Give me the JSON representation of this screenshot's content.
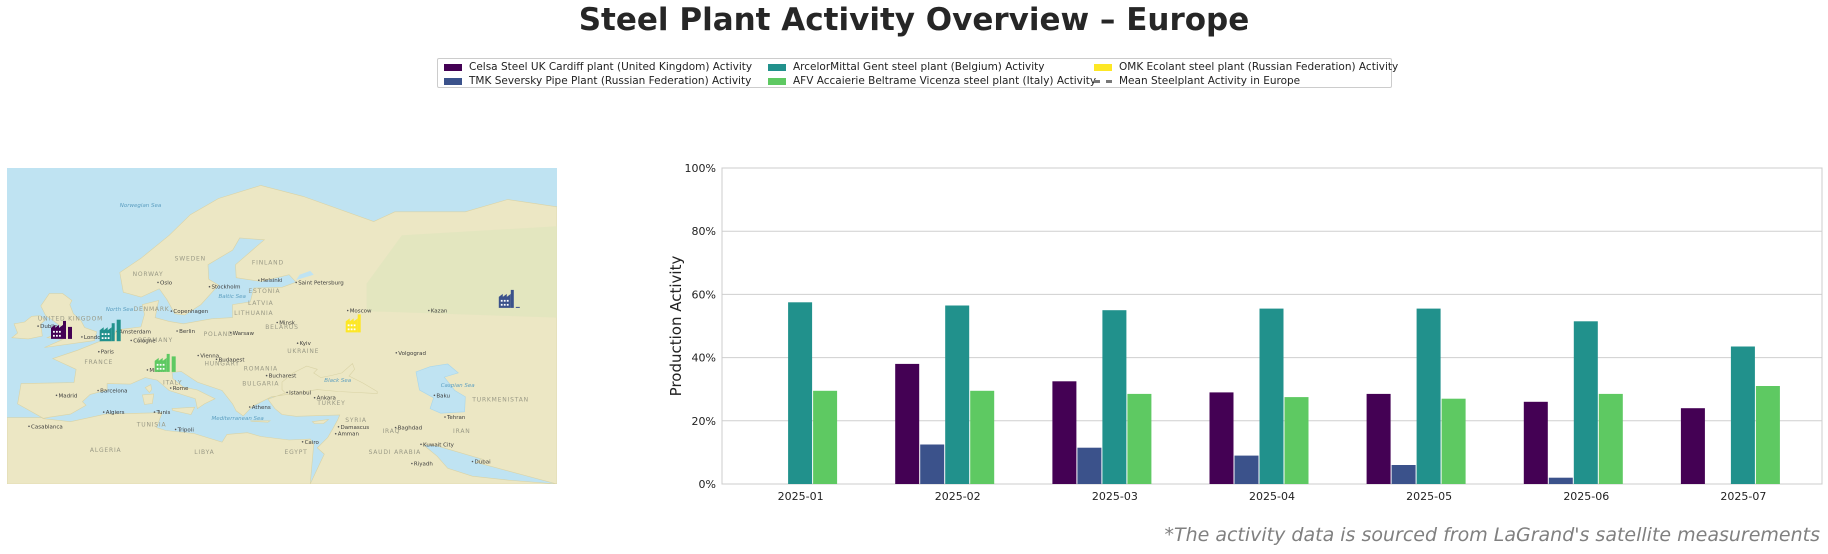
{
  "title": "Steel Plant Activity Overview – Europe",
  "legend": [
    {
      "label": "Celsa Steel UK Cardiff plant (United Kingdom) Activity",
      "color": "#440154",
      "kind": "bar"
    },
    {
      "label": "TMK Seversky Pipe Plant (Russian Federation) Activity",
      "color": "#3b528b",
      "kind": "bar"
    },
    {
      "label": "ArcelorMittal Gent steel plant (Belgium) Activity",
      "color": "#21918c",
      "kind": "bar"
    },
    {
      "label": "AFV Accaierie Beltrame Vicenza steel plant (Italy) Activity",
      "color": "#5ec962",
      "kind": "bar"
    },
    {
      "label": "OMK Ecolant steel plant (Russian Federation) Activity",
      "color": "#fde725",
      "kind": "bar"
    },
    {
      "label": "Mean Steelplant Activity in Europe",
      "color": "#777777",
      "kind": "dash"
    }
  ],
  "map": {
    "labels": [
      {
        "text": "Norwegian Sea",
        "lon": 5,
        "lat": 69,
        "kind": "sea"
      },
      {
        "text": "SWEDEN",
        "lon": 15,
        "lat": 63,
        "kind": "country"
      },
      {
        "text": "FINLAND",
        "lon": 26,
        "lat": 62.5,
        "kind": "country"
      },
      {
        "text": "NORWAY",
        "lon": 9,
        "lat": 61,
        "kind": "country"
      },
      {
        "text": "Oslo",
        "lon": 10.7,
        "lat": 59.9,
        "kind": "city"
      },
      {
        "text": "Stockholm",
        "lon": 18,
        "lat": 59.3,
        "kind": "city"
      },
      {
        "text": "Helsinki",
        "lon": 25,
        "lat": 60.2,
        "kind": "city"
      },
      {
        "text": "Saint Petersburg",
        "lon": 30.3,
        "lat": 59.9,
        "kind": "city"
      },
      {
        "text": "ESTONIA",
        "lon": 25.5,
        "lat": 58.7,
        "kind": "country"
      },
      {
        "text": "Baltic Sea",
        "lon": 19,
        "lat": 58,
        "kind": "sea"
      },
      {
        "text": "LATVIA",
        "lon": 25,
        "lat": 56.9,
        "kind": "country"
      },
      {
        "text": "LITHUANIA",
        "lon": 24,
        "lat": 55.4,
        "kind": "country"
      },
      {
        "text": "North Sea",
        "lon": 3,
        "lat": 56,
        "kind": "sea"
      },
      {
        "text": "DENMARK",
        "lon": 9.5,
        "lat": 56,
        "kind": "country"
      },
      {
        "text": "Copenhagen",
        "lon": 12.6,
        "lat": 55.7,
        "kind": "city"
      },
      {
        "text": "Moscow",
        "lon": 37.6,
        "lat": 55.8,
        "kind": "city"
      },
      {
        "text": "UNITED KINGDOM",
        "lon": -2,
        "lat": 54.5,
        "kind": "country"
      },
      {
        "text": "Dublin",
        "lon": -6.3,
        "lat": 53.3,
        "kind": "city"
      },
      {
        "text": "Minsk",
        "lon": 27.6,
        "lat": 53.9,
        "kind": "city"
      },
      {
        "text": "BELARUS",
        "lon": 28,
        "lat": 53.2,
        "kind": "country"
      },
      {
        "text": "Amsterdam",
        "lon": 4.9,
        "lat": 52.4,
        "kind": "city"
      },
      {
        "text": "Berlin",
        "lon": 13.4,
        "lat": 52.5,
        "kind": "city"
      },
      {
        "text": "POLAND",
        "lon": 19,
        "lat": 52,
        "kind": "country"
      },
      {
        "text": "Warsaw",
        "lon": 21,
        "lat": 52.2,
        "kind": "city"
      },
      {
        "text": "London",
        "lon": -0.1,
        "lat": 51.5,
        "kind": "city"
      },
      {
        "text": "GERMANY",
        "lon": 10,
        "lat": 51,
        "kind": "country"
      },
      {
        "text": "Cologne",
        "lon": 6.9,
        "lat": 50.9,
        "kind": "city"
      },
      {
        "text": "Kyiv",
        "lon": 30.5,
        "lat": 50.4,
        "kind": "city"
      },
      {
        "text": "Paris",
        "lon": 2.3,
        "lat": 48.9,
        "kind": "city"
      },
      {
        "text": "UKRAINE",
        "lon": 31,
        "lat": 49,
        "kind": "country"
      },
      {
        "text": "Vienna",
        "lon": 16.4,
        "lat": 48.2,
        "kind": "city"
      },
      {
        "text": "Volgograd",
        "lon": 44.5,
        "lat": 48.7,
        "kind": "city"
      },
      {
        "text": "FRANCE",
        "lon": 2,
        "lat": 47,
        "kind": "country"
      },
      {
        "text": "Budapest",
        "lon": 19,
        "lat": 47.5,
        "kind": "city"
      },
      {
        "text": "HUNGARY",
        "lon": 19.5,
        "lat": 46.7,
        "kind": "country"
      },
      {
        "text": "ROMANIA",
        "lon": 25,
        "lat": 45.8,
        "kind": "country"
      },
      {
        "text": "Milan",
        "lon": 9.2,
        "lat": 45.5,
        "kind": "city"
      },
      {
        "text": "Bucharest",
        "lon": 26.1,
        "lat": 44.4,
        "kind": "city"
      },
      {
        "text": "Black Sea",
        "lon": 34,
        "lat": 43.5,
        "kind": "sea"
      },
      {
        "text": "Caspian Sea",
        "lon": 50.5,
        "lat": 42.5,
        "kind": "sea"
      },
      {
        "text": "ITALY",
        "lon": 12.5,
        "lat": 43,
        "kind": "country"
      },
      {
        "text": "BULGARIA",
        "lon": 25,
        "lat": 42.8,
        "kind": "country"
      },
      {
        "text": "Barcelona",
        "lon": 2.2,
        "lat": 41.4,
        "kind": "city"
      },
      {
        "text": "Rome",
        "lon": 12.5,
        "lat": 41.9,
        "kind": "city"
      },
      {
        "text": "Istanbul",
        "lon": 29,
        "lat": 41,
        "kind": "city"
      },
      {
        "text": "Baku",
        "lon": 49.9,
        "lat": 40.4,
        "kind": "city"
      },
      {
        "text": "Madrid",
        "lon": -3.7,
        "lat": 40.4,
        "kind": "city"
      },
      {
        "text": "Ankara",
        "lon": 32.9,
        "lat": 39.9,
        "kind": "city"
      },
      {
        "text": "TURKMENISTAN",
        "lon": 59,
        "lat": 39.5,
        "kind": "country"
      },
      {
        "text": "Algiers",
        "lon": 3,
        "lat": 36.8,
        "kind": "city"
      },
      {
        "text": "Mediterranean Sea",
        "lon": 18,
        "lat": 35.5,
        "kind": "sea"
      },
      {
        "text": "Tunis",
        "lon": 10.2,
        "lat": 36.8,
        "kind": "city"
      },
      {
        "text": "Athens",
        "lon": 23.7,
        "lat": 37.9,
        "kind": "city"
      },
      {
        "text": "TURKEY",
        "lon": 35,
        "lat": 38.8,
        "kind": "country"
      },
      {
        "text": "Tehran",
        "lon": 51.4,
        "lat": 35.7,
        "kind": "city"
      },
      {
        "text": "Casablanca",
        "lon": -7.6,
        "lat": 33.6,
        "kind": "city"
      },
      {
        "text": "TUNISIA",
        "lon": 9.5,
        "lat": 34,
        "kind": "country"
      },
      {
        "text": "SYRIA",
        "lon": 38.5,
        "lat": 35,
        "kind": "country"
      },
      {
        "text": "Tripoli",
        "lon": 13.2,
        "lat": 32.9,
        "kind": "city"
      },
      {
        "text": "Damascus",
        "lon": 36.3,
        "lat": 33.5,
        "kind": "city"
      },
      {
        "text": "Baghdad",
        "lon": 44.4,
        "lat": 33.3,
        "kind": "city"
      },
      {
        "text": "Amman",
        "lon": 35.9,
        "lat": 31.9,
        "kind": "city"
      },
      {
        "text": "IRAQ",
        "lon": 43.5,
        "lat": 32.5,
        "kind": "country"
      },
      {
        "text": "IRAN",
        "lon": 53.5,
        "lat": 32.5,
        "kind": "country"
      },
      {
        "text": "Cairo",
        "lon": 31.2,
        "lat": 30,
        "kind": "city"
      },
      {
        "text": "Kuwait City",
        "lon": 48,
        "lat": 29.4,
        "kind": "city"
      },
      {
        "text": "ALGERIA",
        "lon": 3,
        "lat": 28,
        "kind": "country"
      },
      {
        "text": "LIBYA",
        "lon": 17,
        "lat": 27.5,
        "kind": "country"
      },
      {
        "text": "EGYPT",
        "lon": 30,
        "lat": 27.5,
        "kind": "country"
      },
      {
        "text": "SAUDI ARABIA",
        "lon": 44,
        "lat": 27.5,
        "kind": "country"
      },
      {
        "text": "Riyadh",
        "lon": 46.7,
        "lat": 24.7,
        "kind": "city"
      },
      {
        "text": "Dubai",
        "lon": 55.3,
        "lat": 25.2,
        "kind": "city"
      },
      {
        "text": "Kazan",
        "lon": 49.1,
        "lat": 55.8,
        "kind": "city"
      }
    ],
    "plants": [
      {
        "name": "Celsa Steel UK Cardiff plant",
        "lon": -3.2,
        "lat": 51.5,
        "color": "#440154",
        "activity": 0.24
      },
      {
        "name": "ArcelorMittal Gent steel plant",
        "lon": 3.7,
        "lat": 51.1,
        "color": "#21918c",
        "activity": 0.43
      },
      {
        "name": "AFV Accaierie Beltrame Vicenza steel plant",
        "lon": 11.5,
        "lat": 45.5,
        "color": "#5ec962",
        "activity": 0.31
      },
      {
        "name": "OMK Ecolant steel plant",
        "lon": 38.6,
        "lat": 52.6,
        "color": "#fde725",
        "activity": 0
      },
      {
        "name": "TMK Seversky Pipe Plant",
        "lon": 60.3,
        "lat": 56.5,
        "color": "#3b528b",
        "activity": 0.02
      }
    ]
  },
  "chart_data": {
    "type": "bar",
    "categories": [
      "2025-01",
      "2025-02",
      "2025-03",
      "2025-04",
      "2025-05",
      "2025-06",
      "2025-07"
    ],
    "series": [
      {
        "name": "Celsa Steel UK Cardiff plant (United Kingdom) Activity",
        "color": "#440154",
        "values": [
          null,
          38,
          32.5,
          29,
          28.5,
          26,
          24
        ]
      },
      {
        "name": "TMK Seversky Pipe Plant (Russian Federation) Activity",
        "color": "#3b528b",
        "values": [
          null,
          12.5,
          11.5,
          9,
          6,
          2,
          null
        ]
      },
      {
        "name": "ArcelorMittal Gent steel plant (Belgium) Activity",
        "color": "#21918c",
        "values": [
          57.5,
          56.5,
          55,
          55.5,
          55.5,
          51.5,
          43.5
        ]
      },
      {
        "name": "AFV Accaierie Beltrame Vicenza steel plant (Italy) Activity",
        "color": "#5ec962",
        "values": [
          29.5,
          29.5,
          28.5,
          27.5,
          27,
          28.5,
          31
        ]
      },
      {
        "name": "OMK Ecolant steel plant (Russian Federation) Activity",
        "color": "#fde725",
        "values": [
          null,
          null,
          null,
          null,
          null,
          null,
          null
        ]
      }
    ],
    "ylabel": "Production Activity",
    "ylim": [
      0,
      100
    ],
    "yticks": [
      0,
      20,
      40,
      60,
      80,
      100
    ],
    "ytick_labels": [
      "0%",
      "20%",
      "40%",
      "60%",
      "80%",
      "100%"
    ],
    "grid": true,
    "legend_position": "top-center"
  },
  "source_note": "*The activity data is sourced from LaGrand's satellite measurements"
}
